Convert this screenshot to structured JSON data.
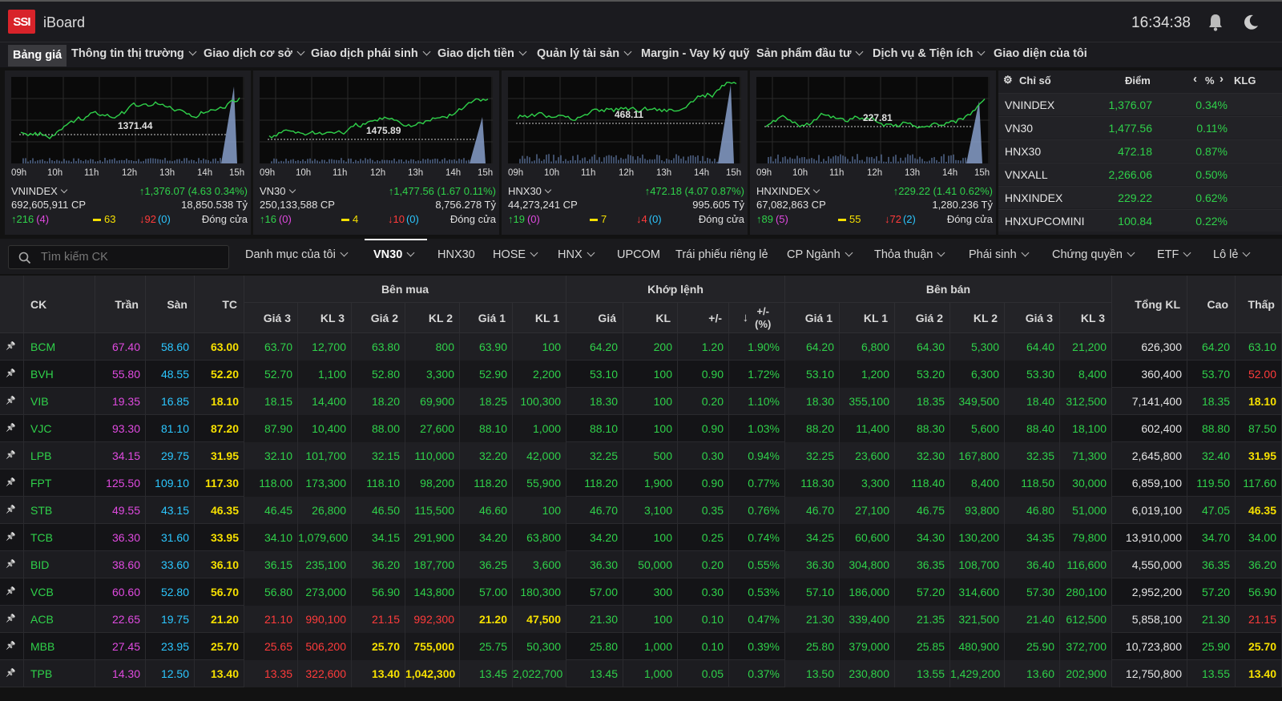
{
  "app": {
    "logo": "SSI",
    "name": "iBoard",
    "clock": "16:34:38"
  },
  "nav": [
    "Bảng giá",
    "Thông tin thị trường",
    "Giao dịch cơ sở",
    "Giao dịch phái sinh",
    "Giao dịch tiền",
    "Quản lý tài sản",
    "Margin - Vay ký quỹ",
    "Sản phẩm đầu tư",
    "Dịch vụ & Tiện ích",
    "Giao diện của tôi"
  ],
  "cards": [
    {
      "name": "VNINDEX",
      "value": "1,376.07 (4.63 0.34%)",
      "ref_label": "1371.44",
      "volume": "692,605,911 CP",
      "amount": "18,850.538 Tỷ",
      "up": "216",
      "up_ceil": "(4)",
      "same": "63",
      "down": "92",
      "down_floor": "(0)",
      "status": "Đóng cửa"
    },
    {
      "name": "VN30",
      "value": "1,477.56 (1.67 0.11%)",
      "ref_label": "1475.89",
      "volume": "250,133,588 CP",
      "amount": "8,756.278 Tỷ",
      "up": "16",
      "up_ceil": "(0)",
      "same": "4",
      "down": "10",
      "down_floor": "(0)",
      "status": "Đóng cửa"
    },
    {
      "name": "HNX30",
      "value": "472.18 (4.07 0.87%)",
      "ref_label": "468.11",
      "volume": "44,273,241 CP",
      "amount": "995.605 Tỷ",
      "up": "19",
      "up_ceil": "(0)",
      "same": "7",
      "down": "4",
      "down_floor": "(0)",
      "status": "Đóng cửa"
    },
    {
      "name": "HNXINDEX",
      "value": "229.22 (1.41 0.62%)",
      "ref_label": "227.81",
      "volume": "67,082,863 CP",
      "amount": "1,280.236 Tỷ",
      "up": "89",
      "up_ceil": "(5)",
      "same": "55",
      "down": "72",
      "down_floor": "(2)",
      "status": "Đóng cửa"
    }
  ],
  "chart_times": [
    "09h",
    "10h",
    "11h",
    "12h",
    "13h",
    "14h",
    "15h"
  ],
  "index_list": {
    "headers": {
      "name": "Chỉ số",
      "point": "Điểm",
      "pct": "%",
      "klg": "KLG"
    },
    "rows": [
      {
        "name": "VNINDEX",
        "point": "1,376.07",
        "pct": "0.34%"
      },
      {
        "name": "VN30",
        "point": "1,477.56",
        "pct": "0.11%"
      },
      {
        "name": "HNX30",
        "point": "472.18",
        "pct": "0.87%"
      },
      {
        "name": "VNXALL",
        "point": "2,266.06",
        "pct": "0.50%"
      },
      {
        "name": "HNXINDEX",
        "point": "229.22",
        "pct": "0.62%"
      },
      {
        "name": "HNXUPCOMINI",
        "point": "100.84",
        "pct": "0.22%"
      }
    ]
  },
  "filter": {
    "search_placeholder": "Tìm kiếm CK",
    "tabs": [
      "Danh mục của tôi",
      "VN30",
      "HNX30",
      "HOSE",
      "HNX",
      "UPCOM",
      "Trái phiếu riêng lẻ",
      "CP Ngành",
      "Thỏa thuận",
      "Phái sinh",
      "Chứng quyền",
      "ETF",
      "Lô lẻ"
    ]
  },
  "table": {
    "headers": {
      "ck": "CK",
      "tran": "Trần",
      "san": "Sàn",
      "tc": "TC",
      "ben_mua": "Bên mua",
      "khop_lenh": "Khớp lệnh",
      "ben_ban": "Bên bán",
      "gia3": "Giá 3",
      "kl3": "KL 3",
      "gia2": "Giá 2",
      "kl2": "KL 2",
      "gia1": "Giá 1",
      "kl1": "KL 1",
      "gia": "Giá",
      "kl": "KL",
      "diff": "+/-",
      "pct": "+/-\n(%)",
      "tong_kl": "Tổng KL",
      "cao": "Cao",
      "thap": "Thấp"
    },
    "rows": [
      [
        "BCM",
        "67.40",
        "58.60",
        "63.00",
        "63.70",
        "12,700",
        "63.80",
        "800",
        "63.90",
        "100",
        "64.20",
        "200",
        "1.20",
        "1.90%",
        "64.20",
        "6,800",
        "64.30",
        "5,300",
        "64.40",
        "21,200",
        "626,300",
        "64.20",
        "63.10"
      ],
      [
        "BVH",
        "55.80",
        "48.55",
        "52.20",
        "52.70",
        "1,100",
        "52.80",
        "3,300",
        "52.90",
        "2,200",
        "53.10",
        "100",
        "0.90",
        "1.72%",
        "53.10",
        "1,200",
        "53.20",
        "6,300",
        "53.30",
        "8,400",
        "360,400",
        "53.70",
        "52.00"
      ],
      [
        "VIB",
        "19.35",
        "16.85",
        "18.10",
        "18.15",
        "14,400",
        "18.20",
        "69,900",
        "18.25",
        "100,300",
        "18.30",
        "100",
        "0.20",
        "1.10%",
        "18.30",
        "355,100",
        "18.35",
        "349,500",
        "18.40",
        "312,500",
        "7,141,400",
        "18.35",
        "18.10"
      ],
      [
        "VJC",
        "93.30",
        "81.10",
        "87.20",
        "87.90",
        "10,400",
        "88.00",
        "27,600",
        "88.10",
        "1,000",
        "88.10",
        "100",
        "0.90",
        "1.03%",
        "88.20",
        "11,400",
        "88.30",
        "5,600",
        "88.40",
        "18,100",
        "602,400",
        "88.80",
        "87.50"
      ],
      [
        "LPB",
        "34.15",
        "29.75",
        "31.95",
        "32.10",
        "101,700",
        "32.15",
        "110,000",
        "32.20",
        "42,000",
        "32.25",
        "500",
        "0.30",
        "0.94%",
        "32.25",
        "23,600",
        "32.30",
        "167,800",
        "32.35",
        "71,300",
        "2,645,800",
        "32.40",
        "31.95"
      ],
      [
        "FPT",
        "125.50",
        "109.10",
        "117.30",
        "118.00",
        "173,300",
        "118.10",
        "98,200",
        "118.20",
        "55,900",
        "118.20",
        "1,900",
        "0.90",
        "0.77%",
        "118.30",
        "3,300",
        "118.40",
        "8,400",
        "118.50",
        "30,000",
        "6,859,100",
        "119.50",
        "117.60"
      ],
      [
        "STB",
        "49.55",
        "43.15",
        "46.35",
        "46.45",
        "26,800",
        "46.50",
        "115,500",
        "46.60",
        "100",
        "46.70",
        "3,100",
        "0.35",
        "0.76%",
        "46.70",
        "27,100",
        "46.75",
        "93,800",
        "46.80",
        "51,000",
        "6,019,100",
        "47.05",
        "46.35"
      ],
      [
        "TCB",
        "36.30",
        "31.60",
        "33.95",
        "34.10",
        "1,079,600",
        "34.15",
        "291,900",
        "34.20",
        "63,800",
        "34.20",
        "100",
        "0.25",
        "0.74%",
        "34.25",
        "60,600",
        "34.30",
        "130,200",
        "34.35",
        "79,800",
        "13,910,000",
        "34.70",
        "34.00"
      ],
      [
        "BID",
        "38.60",
        "33.60",
        "36.10",
        "36.15",
        "235,100",
        "36.20",
        "187,700",
        "36.25",
        "3,600",
        "36.30",
        "50,000",
        "0.20",
        "0.55%",
        "36.30",
        "304,800",
        "36.35",
        "108,700",
        "36.40",
        "116,600",
        "4,550,000",
        "36.35",
        "36.20"
      ],
      [
        "VCB",
        "60.60",
        "52.80",
        "56.70",
        "56.80",
        "273,000",
        "56.90",
        "143,800",
        "57.00",
        "180,300",
        "57.00",
        "300",
        "0.30",
        "0.53%",
        "57.10",
        "186,000",
        "57.20",
        "314,600",
        "57.30",
        "280,100",
        "2,952,200",
        "57.20",
        "56.90"
      ],
      [
        "ACB",
        "22.65",
        "19.75",
        "21.20",
        "21.10",
        "990,100",
        "21.15",
        "992,300",
        "21.20",
        "47,500",
        "21.30",
        "100",
        "0.10",
        "0.47%",
        "21.30",
        "339,400",
        "21.35",
        "321,500",
        "21.40",
        "612,500",
        "5,858,100",
        "21.30",
        "21.15"
      ],
      [
        "MBB",
        "27.45",
        "23.95",
        "25.70",
        "25.65",
        "506,200",
        "25.70",
        "755,000",
        "25.75",
        "50,300",
        "25.80",
        "1,000",
        "0.10",
        "0.39%",
        "25.80",
        "379,000",
        "25.85",
        "480,900",
        "25.90",
        "372,700",
        "10,723,800",
        "25.90",
        "25.70"
      ],
      [
        "TPB",
        "14.30",
        "12.50",
        "13.40",
        "13.35",
        "322,600",
        "13.40",
        "1,042,300",
        "13.45",
        "2,022,700",
        "13.45",
        "1,000",
        "0.05",
        "0.37%",
        "13.50",
        "230,800",
        "13.55",
        "1,429,200",
        "13.60",
        "202,900",
        "12,750,800",
        "13.55",
        "13.40"
      ]
    ],
    "colors": {
      "up": "#2fd14a",
      "down": "#ff3b3b",
      "ref": "#f6e000",
      "ceil": "#e04ae0",
      "floor": "#2cc7ff"
    }
  }
}
